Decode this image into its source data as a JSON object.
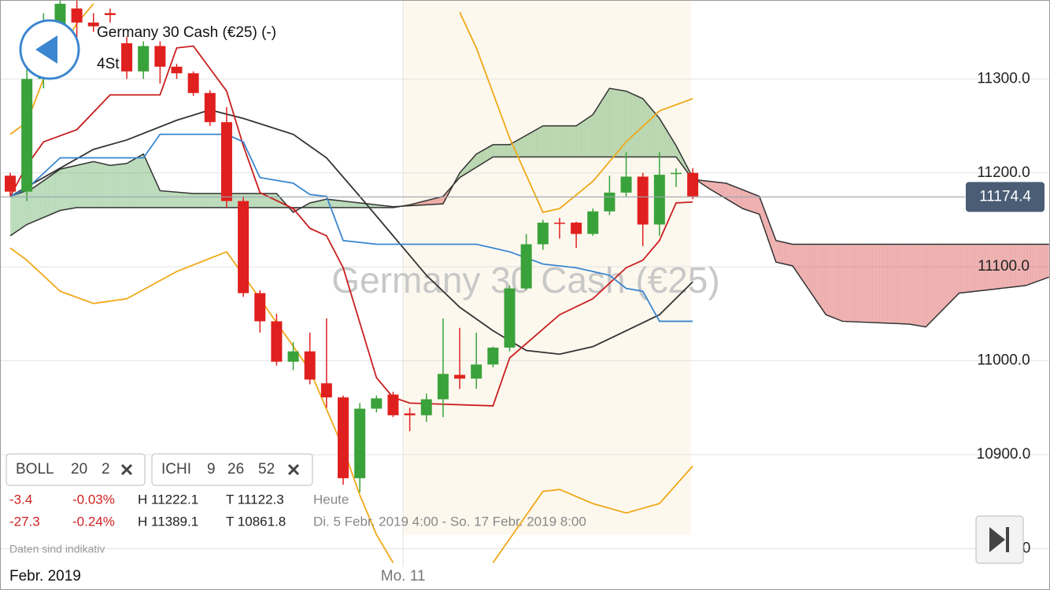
{
  "header": {
    "title": "Germany 30 Cash (€25) (-)",
    "timeframe": "4St"
  },
  "watermark": "Germany 30 Cash (€25)",
  "indicators": [
    {
      "name": "BOLL",
      "params": [
        20,
        2
      ]
    },
    {
      "name": "ICHI",
      "params": [
        9,
        26,
        52
      ]
    }
  ],
  "stats": [
    [
      "-3.4",
      "-0.03%",
      "H 11222.1",
      "T 11122.3",
      "Heute"
    ],
    [
      "-27.3",
      "-0.24%",
      "H 11389.1",
      "T 10861.8",
      "Di. 5 Febr. 2019 4:00 - So. 17 Febr. 2019 8:00"
    ]
  ],
  "note": "Daten sind indikativ",
  "chart_data": {
    "type": "candlestick",
    "period_label": "Febr. 2019",
    "xlim": [
      -0.615,
      62.46
    ],
    "xticks": [
      {
        "value": 23.6,
        "label": "Mo. 11"
      }
    ],
    "ylim": [
      10756,
      11384
    ],
    "yticks": [
      {
        "value": 10800,
        "label": "10800.0"
      },
      {
        "value": 10900,
        "label": "10900.0"
      },
      {
        "value": 11000,
        "label": "11000.0"
      },
      {
        "value": 11100,
        "label": "11100.0"
      },
      {
        "value": 11200,
        "label": "11200.0"
      },
      {
        "value": 11300,
        "label": "11300.0"
      }
    ],
    "grid": true,
    "up_color": "#3aa23a",
    "down_color": "#e0201e",
    "last_price": 11174.4,
    "open": [
      11197,
      11180,
      11300,
      11355,
      11375,
      11360,
      11370,
      11338,
      11308,
      11335,
      11313,
      11306,
      11285,
      11254,
      11170,
      11072,
      11042,
      10999,
      11010,
      10976,
      10961,
      10875,
      10949,
      10964,
      10944,
      10942,
      10959,
      10985,
      10981,
      10996,
      11014,
      11077,
      11124,
      11147,
      11147,
      11135,
      11159,
      11179,
      11196,
      11145,
      11199,
      11200
    ],
    "high": [
      11200,
      11330,
      11370,
      11384,
      11384,
      11370,
      11375,
      11345,
      11340,
      11340,
      11316,
      11308,
      11288,
      11270,
      11175,
      11075,
      11050,
      11020,
      11030,
      11045,
      10963,
      10955,
      10963,
      10967,
      10950,
      10965,
      11045,
      11035,
      11030,
      11015,
      11080,
      11135,
      11150,
      11152,
      11148,
      11162,
      11197,
      11222,
      11200,
      11222,
      11205,
      11205
    ],
    "low": [
      11175,
      11170,
      11290,
      11340,
      11340,
      11350,
      11360,
      11300,
      11300,
      11295,
      11300,
      11282,
      11250,
      11163,
      11068,
      11030,
      10995,
      10990,
      10975,
      10950,
      10868,
      10860,
      10945,
      10940,
      10925,
      10935,
      10940,
      10970,
      10970,
      10993,
      11010,
      11075,
      11118,
      11130,
      11120,
      11133,
      11155,
      11175,
      11122,
      11133,
      11185,
      11172
    ],
    "close": [
      11180,
      11300,
      11350,
      11380,
      11360,
      11356,
      11368,
      11308,
      11335,
      11313,
      11306,
      11285,
      11254,
      11170,
      11072,
      11042,
      10999,
      11010,
      10980,
      10961,
      10875,
      10949,
      10960,
      10942,
      10942,
      10959,
      10986,
      10981,
      10996,
      11014,
      11077,
      11124,
      11147,
      11146,
      11135,
      11159,
      11179,
      11196,
      11145,
      11198,
      11200,
      11175
    ],
    "cloud": {
      "up_color": "rgba(70,160,70,0.32)",
      "down_color": "rgba(215,70,70,0.38)",
      "line_color": "#333333",
      "span_a": {
        "x": [
          0,
          1.3,
          3,
          5,
          6,
          7,
          8,
          9,
          11,
          16,
          17,
          18,
          19,
          23,
          26,
          27,
          28,
          29,
          30,
          32,
          34,
          35,
          36,
          37,
          38,
          39,
          40,
          41,
          42,
          44,
          45,
          46,
          47,
          49,
          50,
          54,
          55,
          57,
          59,
          61,
          62.4
        ],
        "values": [
          11175,
          11183,
          11204,
          11212,
          11208,
          11210,
          11220,
          11181,
          11178,
          11178,
          11158,
          11168,
          11172,
          11164,
          11167,
          11200,
          11220,
          11230,
          11230,
          11250,
          11250,
          11262,
          11290,
          11287,
          11279,
          11258,
          11229,
          11195,
          11183,
          11162,
          11156,
          11105,
          11101,
          11049,
          11042,
          11039,
          11036,
          11072,
          11076,
          11080,
          11089
        ]
      },
      "span_b": {
        "x": [
          0,
          1,
          3,
          4,
          23,
          24,
          26,
          27,
          29,
          40,
          41,
          42,
          43,
          45,
          46,
          47,
          62.4
        ],
        "values": [
          11133,
          11145,
          11160,
          11163,
          11163,
          11166,
          11175,
          11195,
          11217,
          11217,
          11193,
          11191,
          11189,
          11175,
          11128,
          11124,
          11124
        ]
      }
    },
    "lines": [
      {
        "color": "#f0a818",
        "x": [
          0,
          1,
          2,
          4,
          5,
          16,
          27,
          28,
          30,
          32,
          33,
          35,
          37,
          39,
          41
        ],
        "values": [
          11241,
          11254,
          11300,
          11359,
          11380,
          null,
          11371,
          11333,
          11237,
          11158,
          11162,
          11191,
          11233,
          11266,
          11279
        ]
      },
      {
        "color": "#f0a818",
        "x": [
          0,
          1,
          3,
          5,
          7,
          10,
          13,
          15,
          18,
          20,
          21,
          22,
          23,
          26,
          29,
          32,
          33,
          35,
          37,
          39,
          41
        ],
        "values": [
          11120,
          11107,
          11074,
          11061,
          11066,
          11095,
          11116,
          11066,
          10990,
          10907,
          10857,
          10815,
          10785,
          null,
          10785,
          10861,
          10863,
          10848,
          10838,
          10848,
          10888
        ]
      },
      {
        "color": "#333333",
        "x": [
          0,
          2,
          5,
          7,
          10,
          12,
          14,
          17,
          19,
          21,
          23,
          25,
          27,
          29,
          31,
          33,
          35,
          37,
          39,
          41
        ],
        "values": [
          11175,
          11195,
          11225,
          11235,
          11256,
          11267,
          11258,
          11241,
          11216,
          11175,
          11133,
          11091,
          11057,
          11032,
          11011,
          11007,
          11015,
          11032,
          11049,
          11084
        ]
      },
      {
        "color": "#c81e1e",
        "x": [
          0,
          1,
          2,
          4,
          6,
          9,
          10,
          11,
          13,
          14,
          15,
          17,
          18,
          19,
          20,
          22,
          23,
          24,
          29,
          30,
          33,
          35,
          37,
          38,
          39,
          40,
          41
        ],
        "values": [
          11175,
          11208,
          11233,
          11246,
          11283,
          11283,
          11333,
          11335,
          11287,
          11229,
          11179,
          11162,
          11141,
          11133,
          11099,
          10982,
          10961,
          10955,
          10952,
          11003,
          11049,
          11066,
          11099,
          11107,
          11128,
          11168,
          11169
        ]
      },
      {
        "color": "#3a86d0",
        "x": [
          0,
          1,
          3,
          8,
          9,
          13,
          14,
          15,
          17,
          18,
          19,
          20,
          22,
          28,
          29,
          30,
          32,
          34,
          36,
          37,
          38,
          39,
          41
        ],
        "values": [
          11175,
          11183,
          11216,
          11216,
          11241,
          11241,
          11233,
          11195,
          11189,
          11177,
          11175,
          11128,
          11124,
          11124,
          11120,
          11116,
          11103,
          11099,
          11091,
          11077,
          11074,
          11042,
          11042
        ]
      }
    ]
  }
}
